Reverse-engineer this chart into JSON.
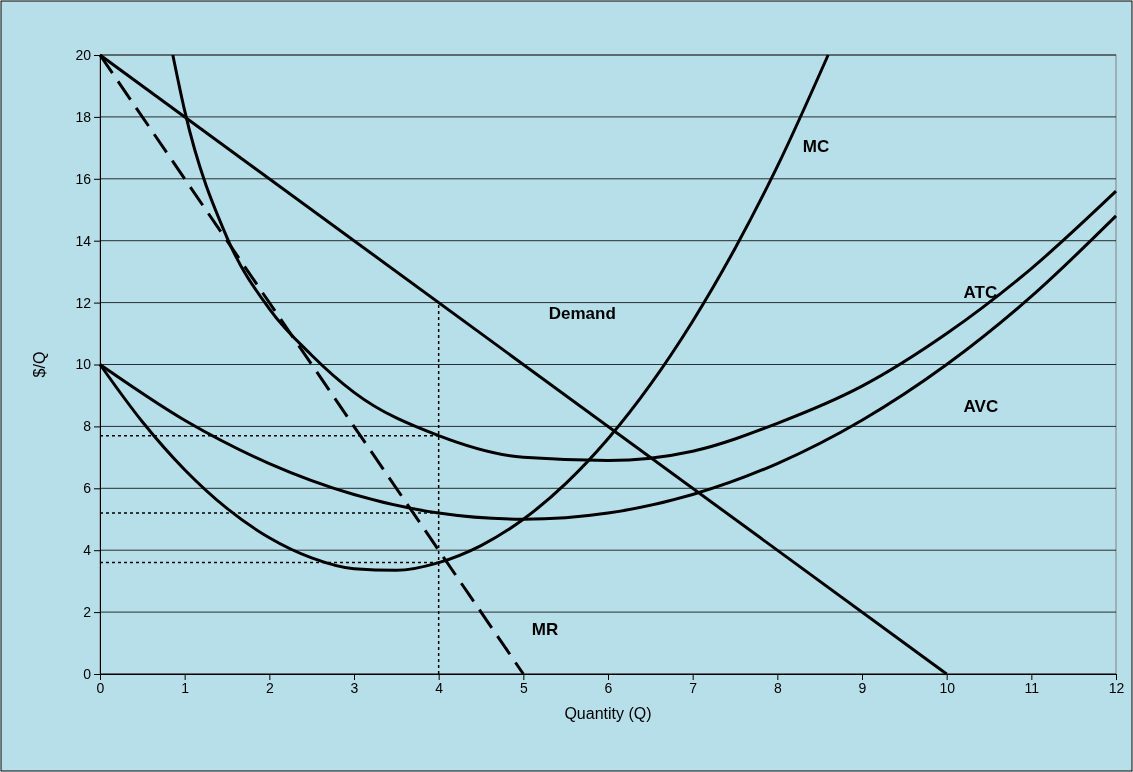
{
  "chart_data": {
    "type": "line",
    "xlabel": "Quantity (Q)",
    "ylabel": "$/Q",
    "xlim": [
      0,
      12
    ],
    "ylim": [
      0,
      20
    ],
    "xticks": [
      0,
      1,
      2,
      3,
      4,
      5,
      6,
      7,
      8,
      9,
      10,
      11,
      12
    ],
    "yticks": [
      0,
      2,
      4,
      6,
      8,
      10,
      12,
      14,
      16,
      18,
      20
    ],
    "grid": "y",
    "line_style": "solid",
    "marker": "none",
    "series": [
      {
        "name": "Demand",
        "color": "#000000",
        "x": [
          0,
          10
        ],
        "values": [
          20,
          0
        ]
      },
      {
        "name": "MR",
        "color": "#000000",
        "line_style": "dashed",
        "x": [
          0,
          5
        ],
        "values": [
          20,
          0
        ]
      },
      {
        "name": "MC",
        "color": "#000000",
        "x": [
          0,
          0.5,
          1,
          1.5,
          2,
          2.5,
          3,
          3.5,
          4,
          4.5,
          5,
          5.5,
          6,
          6.5,
          7,
          7.5,
          8,
          8.6
        ],
        "values": [
          10,
          8.15,
          6.6,
          5.35,
          4.4,
          3.75,
          3.4,
          3.35,
          3.6,
          4.15,
          5,
          6.15,
          7.6,
          9.35,
          11.4,
          13.75,
          16.4,
          20
        ]
      },
      {
        "name": "ATC",
        "color": "#000000",
        "x": [
          0.86,
          1,
          1.5,
          2,
          2.5,
          3,
          4,
          5,
          6,
          7,
          8,
          9,
          10,
          11,
          12
        ],
        "values": [
          20,
          18.2,
          14.1,
          11.8,
          10.3,
          9.1,
          7.7,
          7,
          6.9,
          7.2,
          8.1,
          9.3,
          11,
          13.1,
          15.6
        ]
      },
      {
        "name": "AVC",
        "color": "#000000",
        "x": [
          0,
          1,
          2,
          3,
          4,
          5,
          6,
          7,
          8,
          9,
          10,
          11,
          12
        ],
        "values": [
          10,
          8.2,
          6.8,
          5.8,
          5.2,
          5,
          5.2,
          5.8,
          6.8,
          8.2,
          10,
          12.2,
          14.8
        ]
      },
      {
        "color": "#000000",
        "line_style": "dotted",
        "x": [
          4,
          4
        ],
        "values": [
          0,
          12
        ]
      },
      {
        "color": "#000000",
        "line_style": "dotted",
        "x": [
          0,
          4
        ],
        "values": [
          7.7,
          7.7
        ]
      },
      {
        "color": "#000000",
        "line_style": "dotted",
        "x": [
          0,
          4
        ],
        "values": [
          5.2,
          5.2
        ]
      },
      {
        "color": "#000000",
        "line_style": "dotted",
        "x": [
          0,
          4
        ],
        "values": [
          3.6,
          3.6
        ]
      }
    ]
  }
}
